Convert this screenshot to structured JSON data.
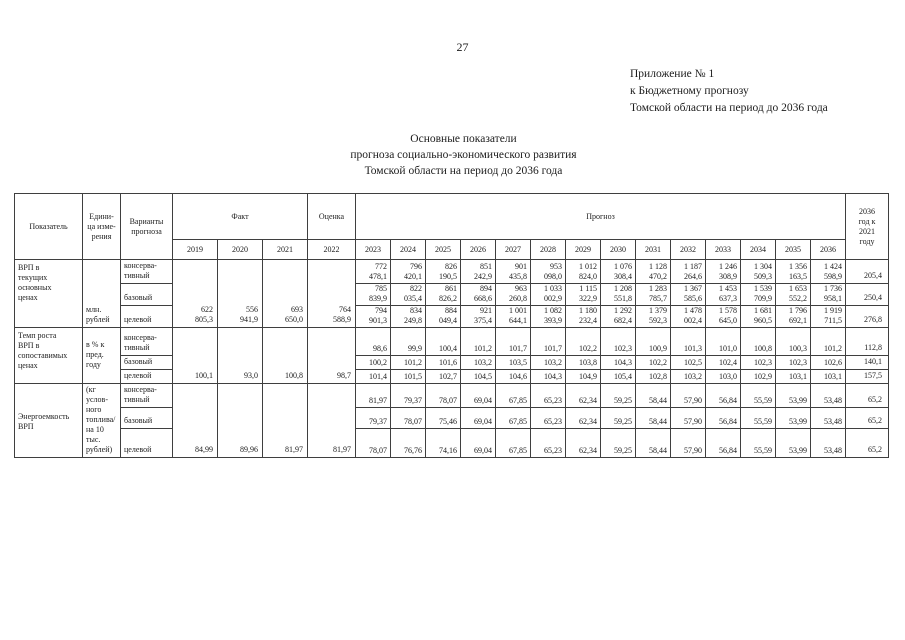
{
  "page": {
    "number": "27",
    "annex": [
      "Приложение № 1",
      "к Бюджетному прогнозу",
      "Томской области на период до 2036 года"
    ],
    "title": [
      "Основные показатели",
      "прогноза социально-экономического развития",
      "Томской области на период до 2036 года"
    ]
  },
  "table": {
    "header": {
      "indicator": "Показатель",
      "unit": "Едини-\nца изме-\nрения",
      "variants": "Варианты\nпрогноза",
      "fact": "Факт",
      "estimate": "Оценка",
      "forecast": "Прогноз",
      "ratio": "2036\nгод к\n2021\nгоду",
      "years_fact": [
        "2019",
        "2020",
        "2021"
      ],
      "years_estimate": [
        "2022"
      ],
      "years_forecast": [
        "2023",
        "2024",
        "2025",
        "2026",
        "2027",
        "2028",
        "2029",
        "2030",
        "2031",
        "2032",
        "2033",
        "2034",
        "2035",
        "2036"
      ]
    },
    "groups": [
      {
        "indicator": "ВРП в\nтекущих\nосновных\nценах",
        "unit": "млн.\nрублей",
        "fact": [
          "622\n805,3",
          "556\n941,9",
          "693\n650,0"
        ],
        "estimate": "764\n588,9",
        "rows": [
          {
            "variant": "консерва-\nтивный",
            "forecast": [
              "772\n478,1",
              "796\n420,1",
              "826\n190,5",
              "851\n242,9",
              "901\n435,8",
              "953\n098,0",
              "1 012\n824,0",
              "1 076\n308,4",
              "1 128\n470,2",
              "1 187\n264,6",
              "1 246\n308,9",
              "1 304\n509,3",
              "1 356\n163,5",
              "1 424\n598,9"
            ],
            "ratio": "205,4"
          },
          {
            "variant": "базовый",
            "forecast": [
              "785\n839,9",
              "822\n035,4",
              "861\n826,2",
              "894\n668,6",
              "963\n260,8",
              "1 033\n002,9",
              "1 115\n322,9",
              "1 208\n551,8",
              "1 283\n785,7",
              "1 367\n585,6",
              "1 453\n637,3",
              "1 539\n709,9",
              "1 653\n552,2",
              "1 736\n958,1"
            ],
            "ratio": "250,4"
          },
          {
            "variant": "целевой",
            "forecast": [
              "794\n901,3",
              "834\n249,8",
              "884\n049,4",
              "921\n375,4",
              "1 001\n644,1",
              "1 082\n393,9",
              "1 180\n232,4",
              "1 292\n682,4",
              "1 379\n592,3",
              "1 478\n002,4",
              "1 578\n645,0",
              "1 681\n960,5",
              "1 796\n692,1",
              "1 919\n711,5"
            ],
            "ratio": "276,8"
          }
        ]
      },
      {
        "indicator": "Темп роста\nВРП в\nсопоставимых\nценах",
        "unit": "в % к\nпред.\nгоду",
        "fact": [
          "100,1",
          "93,0",
          "100,8"
        ],
        "estimate": "98,7",
        "rows": [
          {
            "variant": "консерва-\nтивный",
            "forecast": [
              "98,6",
              "99,9",
              "100,4",
              "101,2",
              "101,7",
              "101,7",
              "102,2",
              "102,3",
              "100,9",
              "101,3",
              "101,0",
              "100,8",
              "100,3",
              "101,2"
            ],
            "ratio": "112,8"
          },
          {
            "variant": "базовый",
            "forecast": [
              "100,2",
              "101,2",
              "101,6",
              "103,2",
              "103,5",
              "103,2",
              "103,8",
              "104,3",
              "102,2",
              "102,5",
              "102,4",
              "102,3",
              "102,3",
              "102,6"
            ],
            "ratio": "140,1"
          },
          {
            "variant": "целевой",
            "forecast": [
              "101,4",
              "101,5",
              "102,7",
              "104,5",
              "104,6",
              "104,3",
              "104,9",
              "105,4",
              "102,8",
              "103,2",
              "103,0",
              "102,9",
              "103,1",
              "103,1"
            ],
            "ratio": "157,5"
          }
        ]
      },
      {
        "indicator": "Энергоемкость\nВРП",
        "unit": "(кг\nуслов-\nного\nтоплива/\nна 10\nтыс.\nрублей)",
        "fact": [
          "84,99",
          "89,96",
          "81,97"
        ],
        "estimate": "81,97",
        "rows": [
          {
            "variant": "консерва-\nтивный",
            "forecast": [
              "81,97",
              "79,37",
              "78,07",
              "69,04",
              "67,85",
              "65,23",
              "62,34",
              "59,25",
              "58,44",
              "57,90",
              "56,84",
              "55,59",
              "53,99",
              "53,48"
            ],
            "ratio": "65,2"
          },
          {
            "variant": "базовый",
            "forecast": [
              "79,37",
              "78,07",
              "75,46",
              "69,04",
              "67,85",
              "65,23",
              "62,34",
              "59,25",
              "58,44",
              "57,90",
              "56,84",
              "55,59",
              "53,99",
              "53,48"
            ],
            "ratio": "65,2"
          },
          {
            "variant": "целевой",
            "forecast": [
              "78,07",
              "76,76",
              "74,16",
              "69,04",
              "67,85",
              "65,23",
              "62,34",
              "59,25",
              "58,44",
              "57,90",
              "56,84",
              "55,59",
              "53,99",
              "53,48"
            ],
            "ratio": "65,2"
          }
        ]
      }
    ]
  }
}
